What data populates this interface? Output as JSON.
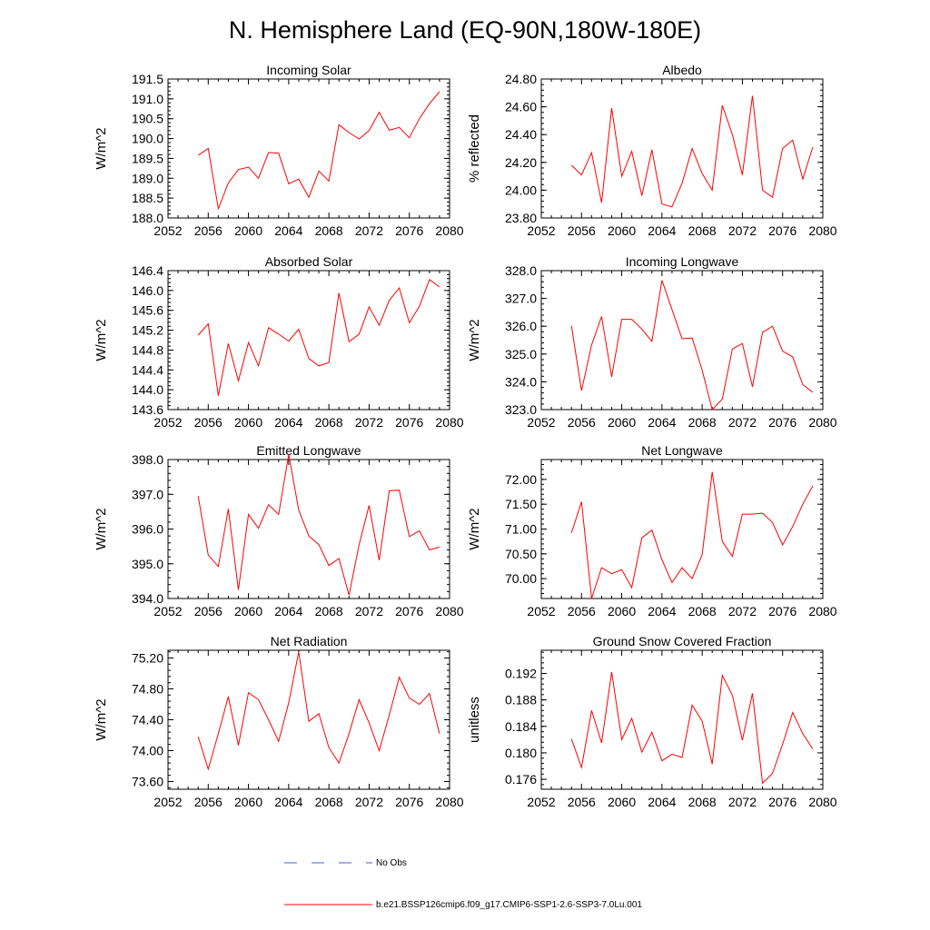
{
  "title": "N. Hemisphere Land (EQ-90N,180W-180E)",
  "colors": {
    "model_line": "#ff0000",
    "obs_line": "#4a5fd0",
    "axis": "#000000"
  },
  "legend": {
    "obs_label": "No Obs",
    "model_label": "b.e21.BSSP126cmip6.f09_g17.CMIP6-SSP1-2.6-SSP3-7.0Lu.001"
  },
  "chart_data": [
    {
      "type": "line",
      "title": "Incoming Solar",
      "ylabel": "W/m^2",
      "xlim": [
        2052,
        2080
      ],
      "ylim": [
        188.0,
        191.5
      ],
      "xticks": [
        "2052",
        "2056",
        "2060",
        "2064",
        "2068",
        "2072",
        "2076",
        "2080"
      ],
      "yticks": [
        "188.0",
        "188.5",
        "189.0",
        "189.5",
        "190.0",
        "190.5",
        "191.0",
        "191.5"
      ],
      "ytick_values": [
        188.0,
        188.5,
        189.0,
        189.5,
        190.0,
        190.5,
        191.0,
        191.5
      ],
      "x": [
        2055,
        2056,
        2057,
        2058,
        2059,
        2060,
        2061,
        2062,
        2063,
        2064,
        2065,
        2066,
        2067,
        2068,
        2069,
        2070,
        2071,
        2072,
        2073,
        2074,
        2075,
        2076,
        2077,
        2078,
        2079
      ],
      "values": [
        189.58,
        189.75,
        188.23,
        188.88,
        189.22,
        189.28,
        189.0,
        189.65,
        189.63,
        188.86,
        188.98,
        188.52,
        189.18,
        188.93,
        190.35,
        190.15,
        189.99,
        190.2,
        190.66,
        190.21,
        190.28,
        190.02,
        190.5,
        190.88,
        191.18
      ]
    },
    {
      "type": "line",
      "title": "Albedo",
      "ylabel": "% reflected",
      "xlim": [
        2052,
        2080
      ],
      "ylim": [
        23.8,
        24.8
      ],
      "xticks": [
        "2052",
        "2056",
        "2060",
        "2064",
        "2068",
        "2072",
        "2076",
        "2080"
      ],
      "yticks": [
        "23.80",
        "24.00",
        "24.20",
        "24.40",
        "24.60",
        "24.80"
      ],
      "ytick_values": [
        23.8,
        24.0,
        24.2,
        24.4,
        24.6,
        24.8
      ],
      "x": [
        2055,
        2056,
        2057,
        2058,
        2059,
        2060,
        2061,
        2062,
        2063,
        2064,
        2065,
        2066,
        2067,
        2068,
        2069,
        2070,
        2071,
        2072,
        2073,
        2074,
        2075,
        2076,
        2077,
        2078,
        2079
      ],
      "values": [
        24.18,
        24.11,
        24.27,
        23.91,
        24.59,
        24.1,
        24.28,
        23.96,
        24.29,
        23.9,
        23.88,
        24.05,
        24.3,
        24.12,
        24.0,
        24.61,
        24.4,
        24.11,
        24.68,
        24.0,
        23.95,
        24.3,
        24.36,
        24.08,
        24.31
      ]
    },
    {
      "type": "line",
      "title": "Absorbed Solar",
      "ylabel": "W/m^2",
      "xlim": [
        2052,
        2080
      ],
      "ylim": [
        143.6,
        146.4
      ],
      "xticks": [
        "2052",
        "2056",
        "2060",
        "2064",
        "2068",
        "2072",
        "2076",
        "2080"
      ],
      "yticks": [
        "143.6",
        "144.0",
        "144.4",
        "144.8",
        "145.2",
        "145.6",
        "146.0",
        "146.4"
      ],
      "ytick_values": [
        143.6,
        144.0,
        144.4,
        144.8,
        145.2,
        145.6,
        146.0,
        146.4
      ],
      "x": [
        2055,
        2056,
        2057,
        2058,
        2059,
        2060,
        2061,
        2062,
        2063,
        2064,
        2065,
        2066,
        2067,
        2068,
        2069,
        2070,
        2071,
        2072,
        2073,
        2074,
        2075,
        2076,
        2077,
        2078,
        2079
      ],
      "values": [
        145.1,
        145.33,
        143.88,
        144.93,
        144.18,
        144.95,
        144.48,
        145.25,
        145.12,
        144.98,
        145.22,
        144.63,
        144.48,
        144.55,
        145.95,
        144.97,
        145.12,
        145.67,
        145.3,
        145.8,
        146.05,
        145.35,
        145.68,
        146.22,
        146.07
      ]
    },
    {
      "type": "line",
      "title": "Incoming Longwave",
      "ylabel": "W/m^2",
      "xlim": [
        2052,
        2080
      ],
      "ylim": [
        323.0,
        328.0
      ],
      "xticks": [
        "2052",
        "2056",
        "2060",
        "2064",
        "2068",
        "2072",
        "2076",
        "2080"
      ],
      "yticks": [
        "323.0",
        "324.0",
        "325.0",
        "326.0",
        "327.0",
        "328.0"
      ],
      "ytick_values": [
        323.0,
        324.0,
        325.0,
        326.0,
        327.0,
        328.0
      ],
      "x": [
        2055,
        2056,
        2057,
        2058,
        2059,
        2060,
        2061,
        2062,
        2063,
        2064,
        2065,
        2066,
        2067,
        2068,
        2069,
        2070,
        2071,
        2072,
        2073,
        2074,
        2075,
        2076,
        2077,
        2078,
        2079
      ],
      "values": [
        326.02,
        323.68,
        325.33,
        326.35,
        324.18,
        326.25,
        326.25,
        325.9,
        325.45,
        327.65,
        326.6,
        325.55,
        325.58,
        324.42,
        323.0,
        323.38,
        325.18,
        325.38,
        323.82,
        325.78,
        326.0,
        325.1,
        324.9,
        323.9,
        323.62
      ]
    },
    {
      "type": "line",
      "title": "Emitted Longwave",
      "ylabel": "W/m^2",
      "xlim": [
        2052,
        2080
      ],
      "ylim": [
        394.0,
        398.0
      ],
      "xticks": [
        "2052",
        "2056",
        "2060",
        "2064",
        "2068",
        "2072",
        "2076",
        "2080"
      ],
      "yticks": [
        "394.0",
        "395.0",
        "396.0",
        "397.0",
        "398.0"
      ],
      "ytick_values": [
        394.0,
        395.0,
        396.0,
        397.0,
        398.0
      ],
      "x": [
        2055,
        2056,
        2057,
        2058,
        2059,
        2060,
        2061,
        2062,
        2063,
        2064,
        2065,
        2066,
        2067,
        2068,
        2069,
        2070,
        2071,
        2072,
        2073,
        2074,
        2075,
        2076,
        2077,
        2078,
        2079
      ],
      "values": [
        396.95,
        395.25,
        394.92,
        396.58,
        394.25,
        396.42,
        396.02,
        396.7,
        396.42,
        398.15,
        396.55,
        395.8,
        395.55,
        394.95,
        395.15,
        394.1,
        395.55,
        396.68,
        395.1,
        397.1,
        397.12,
        395.78,
        395.95,
        395.4,
        395.48
      ]
    },
    {
      "type": "line",
      "title": "Net Longwave",
      "ylabel": "W/m^2",
      "xlim": [
        2052,
        2080
      ],
      "ylim": [
        69.6,
        72.4
      ],
      "xticks": [
        "2052",
        "2056",
        "2060",
        "2064",
        "2068",
        "2072",
        "2076",
        "2080"
      ],
      "yticks": [
        "70.00",
        "70.50",
        "71.00",
        "71.50",
        "72.00"
      ],
      "ytick_values": [
        70.0,
        70.5,
        71.0,
        71.5,
        72.0
      ],
      "x": [
        2055,
        2056,
        2057,
        2058,
        2059,
        2060,
        2061,
        2062,
        2063,
        2064,
        2065,
        2066,
        2067,
        2068,
        2069,
        2070,
        2071,
        2072,
        2073,
        2074,
        2075,
        2076,
        2077,
        2078,
        2079
      ],
      "values": [
        70.92,
        71.55,
        69.6,
        70.22,
        70.1,
        70.18,
        69.82,
        70.82,
        70.98,
        70.38,
        69.92,
        70.22,
        70.0,
        70.48,
        72.15,
        70.75,
        70.45,
        71.3,
        71.3,
        71.32,
        71.13,
        70.68,
        71.05,
        71.5,
        71.87
      ]
    },
    {
      "type": "line",
      "title": "Net Radiation",
      "ylabel": "W/m^2",
      "xlim": [
        2052,
        2080
      ],
      "ylim": [
        73.5,
        75.3
      ],
      "xticks": [
        "2052",
        "2056",
        "2060",
        "2064",
        "2068",
        "2072",
        "2076",
        "2080"
      ],
      "yticks": [
        "73.60",
        "74.00",
        "74.40",
        "74.80",
        "75.20"
      ],
      "ytick_values": [
        73.6,
        74.0,
        74.4,
        74.8,
        75.2
      ],
      "x": [
        2055,
        2056,
        2057,
        2058,
        2059,
        2060,
        2061,
        2062,
        2063,
        2064,
        2065,
        2066,
        2067,
        2068,
        2069,
        2070,
        2071,
        2072,
        2073,
        2074,
        2075,
        2076,
        2077,
        2078,
        2079
      ],
      "values": [
        74.18,
        73.76,
        74.22,
        74.7,
        74.07,
        74.75,
        74.66,
        74.4,
        74.12,
        74.62,
        75.28,
        74.38,
        74.48,
        74.04,
        73.84,
        74.22,
        74.66,
        74.36,
        74.0,
        74.46,
        74.95,
        74.68,
        74.6,
        74.74,
        74.22
      ]
    },
    {
      "type": "line",
      "title": "Ground Snow Covered Fraction",
      "ylabel": "unitless",
      "xlim": [
        2052,
        2080
      ],
      "ylim": [
        0.1745,
        0.1955
      ],
      "xticks": [
        "2052",
        "2056",
        "2060",
        "2064",
        "2068",
        "2072",
        "2076",
        "2080"
      ],
      "yticks": [
        "0.176",
        "0.180",
        "0.184",
        "0.188",
        "0.192"
      ],
      "ytick_values": [
        0.176,
        0.18,
        0.184,
        0.188,
        0.192
      ],
      "x": [
        2055,
        2056,
        2057,
        2058,
        2059,
        2060,
        2061,
        2062,
        2063,
        2064,
        2065,
        2066,
        2067,
        2068,
        2069,
        2070,
        2071,
        2072,
        2073,
        2074,
        2075,
        2076,
        2077,
        2078,
        2079
      ],
      "values": [
        0.1821,
        0.1778,
        0.1864,
        0.1815,
        0.1922,
        0.182,
        0.1852,
        0.1801,
        0.1831,
        0.1788,
        0.1798,
        0.1793,
        0.1872,
        0.1848,
        0.1783,
        0.1917,
        0.1887,
        0.1819,
        0.189,
        0.1754,
        0.1769,
        0.1813,
        0.1861,
        0.1829,
        0.1806
      ]
    }
  ]
}
